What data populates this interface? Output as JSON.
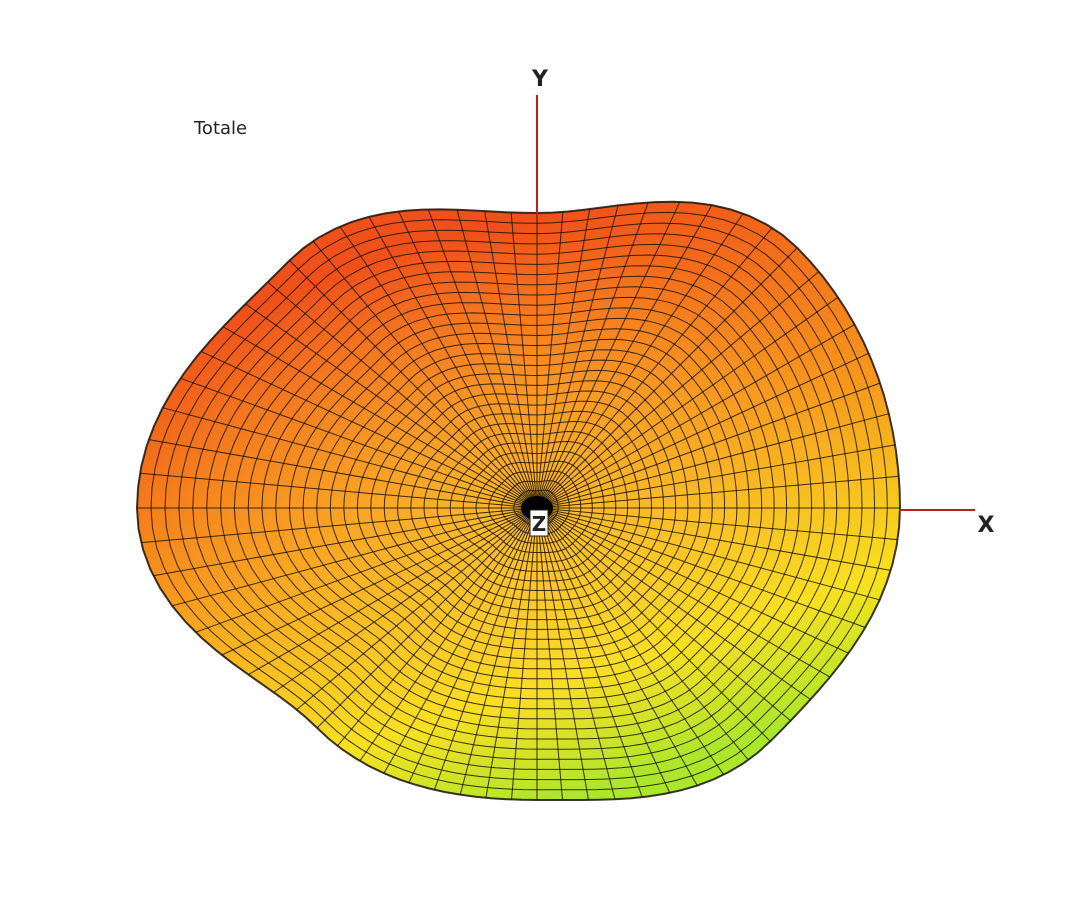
{
  "title": "Totale",
  "axes": {
    "x": "X",
    "y": "Y",
    "z": "Z"
  }
}
